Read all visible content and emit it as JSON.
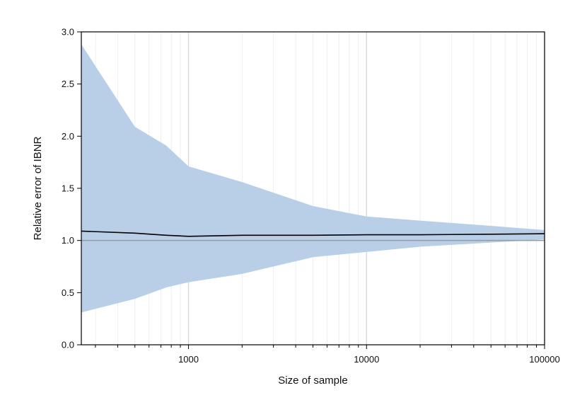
{
  "chart_data": {
    "type": "area",
    "x_scale": "log",
    "xlabel": "Size of sample",
    "ylabel": "Relative error of IBNR",
    "xlim": [
      250,
      100000
    ],
    "ylim": [
      0,
      3.0
    ],
    "x_ticks": [
      1000,
      10000,
      100000
    ],
    "x_tick_labels": [
      "1000",
      "10000",
      "100000"
    ],
    "y_ticks": [
      0.0,
      0.5,
      1.0,
      1.5,
      2.0,
      2.5,
      3.0
    ],
    "y_tick_labels": [
      "0.0",
      "0.5",
      "1.0",
      "1.5",
      "2.0",
      "2.5",
      "3.0"
    ],
    "grid": "vertical minor/major on x only",
    "reference_line": {
      "y": 1.0,
      "color": "#999999"
    },
    "x": [
      250,
      500,
      750,
      1000,
      2000,
      5000,
      10000,
      20000,
      50000,
      100000
    ],
    "band_upper": [
      2.88,
      2.09,
      1.91,
      1.71,
      1.56,
      1.33,
      1.23,
      1.19,
      1.14,
      1.1
    ],
    "band_lower": [
      0.31,
      0.44,
      0.55,
      0.6,
      0.68,
      0.84,
      0.89,
      0.94,
      0.98,
      1.01
    ],
    "mean_line": [
      1.09,
      1.07,
      1.05,
      1.04,
      1.05,
      1.05,
      1.055,
      1.055,
      1.06,
      1.065
    ],
    "band_color": "#b9cfe7",
    "line_color": "#000000"
  }
}
